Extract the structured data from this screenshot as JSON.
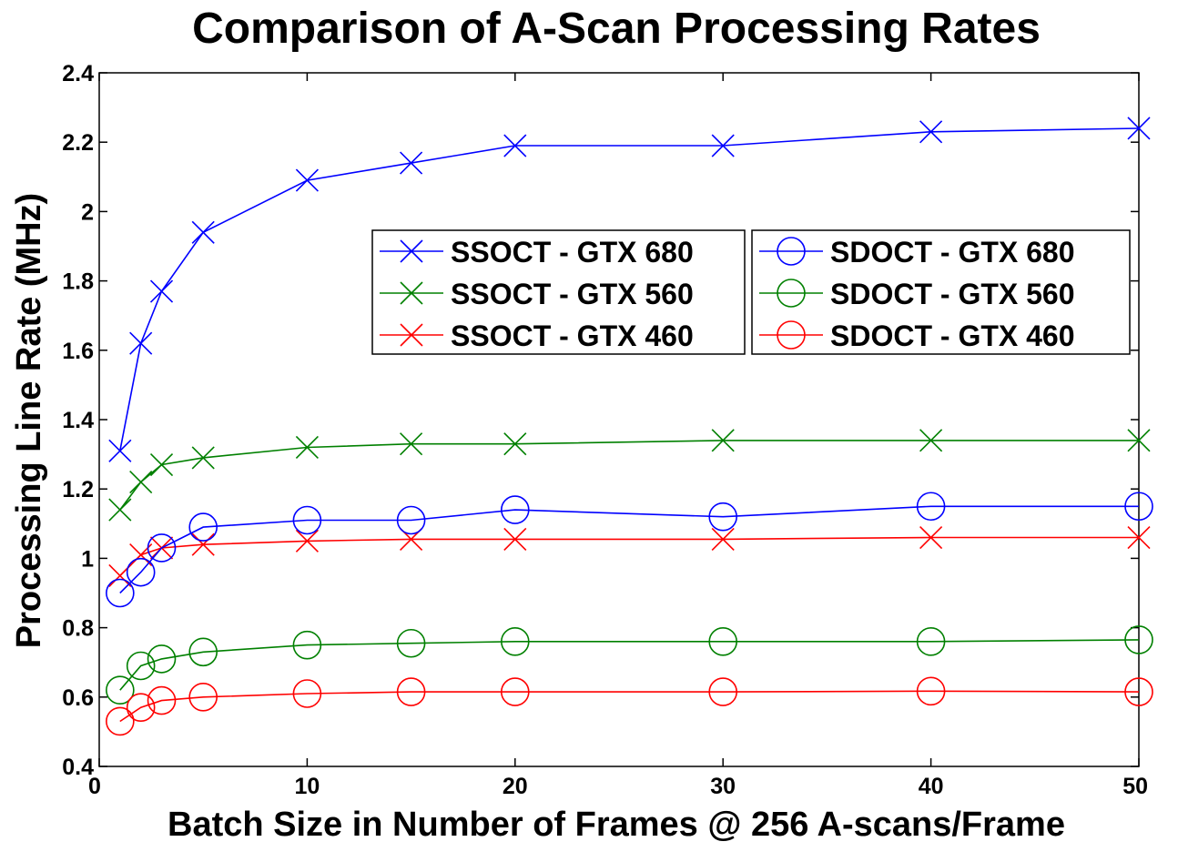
{
  "chart_data": {
    "type": "line",
    "title": "Comparison of A-Scan Processing Rates",
    "xlabel": "Batch Size in Number of Frames @ 256 A-scans/Frame",
    "ylabel": "Processing Line Rate (MHz)",
    "xlim": [
      0,
      50
    ],
    "ylim": [
      0.4,
      2.4
    ],
    "xticks": [
      0,
      10,
      20,
      30,
      40,
      50
    ],
    "xtick_labels": [
      "0",
      "10",
      "20",
      "30",
      "40",
      "50"
    ],
    "yticks": [
      0.4,
      0.6,
      0.8,
      1.0,
      1.2,
      1.4,
      1.6,
      1.8,
      2.0,
      2.2,
      2.4
    ],
    "ytick_labels": [
      "0.4",
      "0.6",
      "0.8",
      "1",
      "1.2",
      "1.4",
      "1.6",
      "1.8",
      "2",
      "2.2",
      "2.4"
    ],
    "grid": false,
    "legend_placement": "upper-center, two columns",
    "x": [
      1,
      2,
      3,
      5,
      10,
      15,
      20,
      30,
      40,
      50
    ],
    "series": [
      {
        "name": "SSOCT - GTX 680",
        "color": "#0000ff",
        "marker": "x",
        "values": [
          1.31,
          1.62,
          1.77,
          1.94,
          2.09,
          2.14,
          2.19,
          2.19,
          2.23,
          2.24
        ]
      },
      {
        "name": "SSOCT - GTX 560",
        "color": "#008000",
        "marker": "x",
        "values": [
          1.14,
          1.22,
          1.27,
          1.29,
          1.32,
          1.33,
          1.33,
          1.34,
          1.34,
          1.34
        ]
      },
      {
        "name": "SSOCT - GTX 460",
        "color": "#ff0000",
        "marker": "x",
        "values": [
          0.95,
          1.01,
          1.03,
          1.04,
          1.05,
          1.055,
          1.055,
          1.055,
          1.06,
          1.06
        ]
      },
      {
        "name": "SDOCT - GTX 680",
        "color": "#0000ff",
        "marker": "o",
        "values": [
          0.9,
          0.96,
          1.03,
          1.09,
          1.11,
          1.11,
          1.14,
          1.12,
          1.15,
          1.15
        ]
      },
      {
        "name": "SDOCT - GTX 560",
        "color": "#008000",
        "marker": "o",
        "values": [
          0.62,
          0.69,
          0.71,
          0.73,
          0.75,
          0.755,
          0.76,
          0.76,
          0.76,
          0.765
        ]
      },
      {
        "name": "SDOCT - GTX 460",
        "color": "#ff0000",
        "marker": "o",
        "values": [
          0.53,
          0.57,
          0.59,
          0.6,
          0.61,
          0.615,
          0.615,
          0.615,
          0.617,
          0.615
        ]
      }
    ]
  }
}
